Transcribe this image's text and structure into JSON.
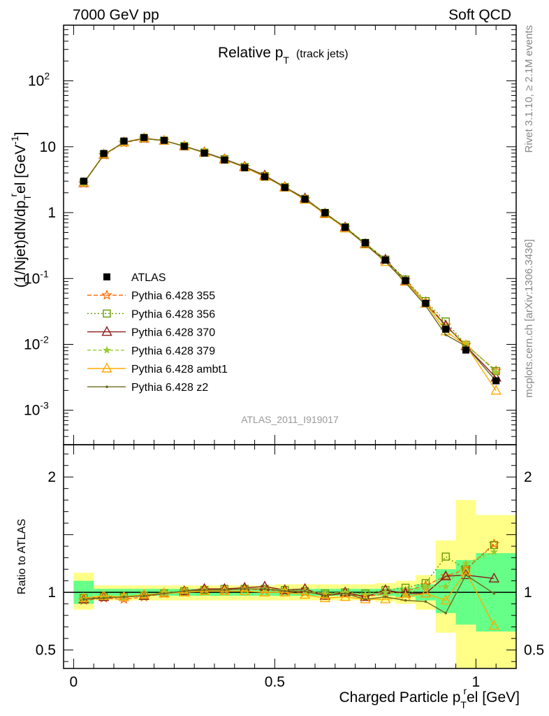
{
  "header": {
    "left": "7000 GeV pp",
    "right": "Soft QCD"
  },
  "side_labels": {
    "rivet": "Rivet 3.1.10, ≥ 2.1M events",
    "mcplots": "mcplots.cern.ch [arXiv:1306.3436]"
  },
  "analysis_tag": "ATLAS_2011_I919017",
  "title_main": "Relative p",
  "title_sub": "T",
  "title_paren": "(track jets)",
  "ylabel_parts": [
    "(1/Njet)dN/dp",
    "T",
    "r",
    "el [GeV",
    "-1",
    "]"
  ],
  "ratio_ylabel": "Ratio to ATLAS",
  "xlabel_parts": [
    "Charged Particle p",
    "T",
    "r",
    "el [GeV]"
  ],
  "colors": {
    "ATLAS": "#000000",
    "355": "#ff6600",
    "356": "#669900",
    "370": "#8b1a1a",
    "379": "#99cc33",
    "ambt1": "#ffaa00",
    "z2": "#6b6b1f",
    "band_green": "#66ff88",
    "band_yellow": "#ffff88"
  },
  "chart_data": [
    {
      "type": "line",
      "yscale": "log",
      "xlim": [
        -0.025,
        1.1
      ],
      "ylim": [
        0.0003,
        700
      ],
      "yticks": [
        {
          "v": 0.001,
          "base": "10",
          "exp": "-3"
        },
        {
          "v": 0.01,
          "base": "10",
          "exp": "-2"
        },
        {
          "v": 0.1,
          "base": "10",
          "exp": "-1"
        },
        {
          "v": 1,
          "base": "1",
          "exp": ""
        },
        {
          "v": 10,
          "base": "10",
          "exp": ""
        },
        {
          "v": 100,
          "base": "10",
          "exp": "2"
        }
      ],
      "x": [
        0.025,
        0.075,
        0.125,
        0.175,
        0.225,
        0.275,
        0.325,
        0.375,
        0.425,
        0.475,
        0.525,
        0.575,
        0.625,
        0.675,
        0.725,
        0.775,
        0.825,
        0.875,
        0.925,
        0.975,
        1.05
      ],
      "data": {
        "name": "ATLAS",
        "values": [
          3.0,
          7.9,
          12.2,
          13.8,
          12.5,
          10.1,
          8.0,
          6.3,
          4.8,
          3.5,
          2.4,
          1.6,
          1.0,
          0.6,
          0.35,
          0.19,
          0.093,
          0.042,
          0.017,
          0.0082,
          0.0028
        ]
      },
      "legend": [
        "ATLAS",
        "Pythia 6.428 355",
        "Pythia 6.428 356",
        "Pythia 6.428 370",
        "Pythia 6.428 379",
        "Pythia 6.428 ambt1",
        "Pythia 6.428 z2"
      ]
    },
    {
      "type": "line",
      "title": "Ratio to ATLAS",
      "xlim": [
        -0.025,
        1.1
      ],
      "ylim": [
        0.34,
        2.28
      ],
      "yticks": [
        0.5,
        1,
        2
      ],
      "xticks": [
        0,
        0.5,
        1
      ],
      "xtick_labels": [
        "0",
        "0.5",
        "1"
      ],
      "bin_edges": [
        0.0,
        0.05,
        0.1,
        0.15,
        0.2,
        0.25,
        0.3,
        0.35,
        0.4,
        0.45,
        0.5,
        0.55,
        0.6,
        0.65,
        0.7,
        0.75,
        0.8,
        0.85,
        0.9,
        0.95,
        1.0,
        1.1
      ],
      "band_green": [
        [
          0.9,
          1.1
        ],
        [
          0.97,
          1.03
        ],
        [
          0.97,
          1.03
        ],
        [
          0.97,
          1.03
        ],
        [
          0.97,
          1.03
        ],
        [
          0.97,
          1.03
        ],
        [
          0.97,
          1.03
        ],
        [
          0.97,
          1.03
        ],
        [
          0.97,
          1.03
        ],
        [
          0.97,
          1.03
        ],
        [
          0.97,
          1.03
        ],
        [
          0.97,
          1.03
        ],
        [
          0.97,
          1.03
        ],
        [
          0.97,
          1.03
        ],
        [
          0.97,
          1.03
        ],
        [
          0.97,
          1.03
        ],
        [
          0.96,
          1.04
        ],
        [
          0.93,
          1.07
        ],
        [
          0.82,
          1.2
        ],
        [
          0.72,
          1.28
        ],
        [
          0.66,
          1.34
        ]
      ],
      "band_yellow": [
        [
          0.85,
          1.17
        ],
        [
          0.93,
          1.06
        ],
        [
          0.93,
          1.06
        ],
        [
          0.93,
          1.06
        ],
        [
          0.93,
          1.06
        ],
        [
          0.93,
          1.06
        ],
        [
          0.93,
          1.06
        ],
        [
          0.93,
          1.06
        ],
        [
          0.93,
          1.06
        ],
        [
          0.93,
          1.06
        ],
        [
          0.93,
          1.07
        ],
        [
          0.93,
          1.07
        ],
        [
          0.93,
          1.07
        ],
        [
          0.93,
          1.07
        ],
        [
          0.93,
          1.07
        ],
        [
          0.92,
          1.08
        ],
        [
          0.9,
          1.1
        ],
        [
          0.85,
          1.15
        ],
        [
          0.65,
          1.45
        ],
        [
          0.34,
          1.8
        ],
        [
          0.34,
          1.67
        ]
      ],
      "x": [
        0.025,
        0.075,
        0.125,
        0.175,
        0.225,
        0.275,
        0.325,
        0.375,
        0.425,
        0.475,
        0.525,
        0.575,
        0.625,
        0.675,
        0.725,
        0.775,
        0.825,
        0.875,
        0.925,
        0.975,
        1.045
      ],
      "series": [
        {
          "name": "Pythia 6.428 355",
          "key": "355",
          "marker": "star",
          "dash": "6,3",
          "values": [
            0.93,
            0.95,
            0.94,
            0.96,
            0.99,
            1.01,
            1.02,
            1.02,
            1.03,
            1.02,
            1.01,
            1.0,
            0.98,
            0.99,
            0.96,
            0.99,
            1.01,
            1.06,
            1.14,
            1.2,
            1.42
          ]
        },
        {
          "name": "Pythia 6.428 356",
          "key": "356",
          "marker": "square",
          "dash": "2,3",
          "values": [
            0.95,
            0.96,
            0.96,
            0.97,
            0.99,
            1.01,
            1.02,
            1.03,
            1.03,
            1.03,
            1.02,
            1.01,
            0.99,
            1.0,
            0.99,
            1.02,
            1.04,
            1.08,
            1.31,
            1.2,
            1.41
          ]
        },
        {
          "name": "Pythia 6.428 370",
          "key": "370",
          "marker": "triangle",
          "dash": "",
          "values": [
            0.94,
            0.96,
            0.96,
            0.97,
            0.99,
            1.01,
            1.03,
            1.03,
            1.04,
            1.05,
            1.02,
            1.03,
            0.97,
            1.0,
            0.96,
            1.02,
            0.99,
            0.99,
            1.14,
            1.15,
            1.12
          ]
        },
        {
          "name": "Pythia 6.428 379",
          "key": "379",
          "marker": "smallstar",
          "dash": "5,3",
          "values": [
            0.94,
            0.96,
            0.96,
            0.97,
            1.0,
            1.01,
            1.02,
            1.02,
            1.03,
            1.03,
            1.02,
            1.01,
            0.99,
            1.0,
            0.98,
            1.0,
            0.98,
            1.05,
            1.05,
            1.25,
            1.35
          ]
        },
        {
          "name": "Pythia 6.428 ambt1",
          "key": "ambt1",
          "marker": "triangle",
          "dash": "",
          "values": [
            0.95,
            0.97,
            0.96,
            0.98,
            0.99,
            1.0,
            1.01,
            1.01,
            1.01,
            1.0,
            1.0,
            0.98,
            0.95,
            0.96,
            0.94,
            0.94,
            0.96,
            0.99,
            0.93,
            1.18,
            0.71
          ]
        },
        {
          "name": "Pythia 6.428 z2",
          "key": "z2",
          "marker": "dot",
          "dash": "",
          "values": [
            0.94,
            0.95,
            0.96,
            0.97,
            0.99,
            1.01,
            1.02,
            1.02,
            1.03,
            1.03,
            1.01,
            1.01,
            0.97,
            0.99,
            0.94,
            0.96,
            0.93,
            0.92,
            0.82,
            1.15,
            0.99
          ]
        }
      ]
    }
  ]
}
